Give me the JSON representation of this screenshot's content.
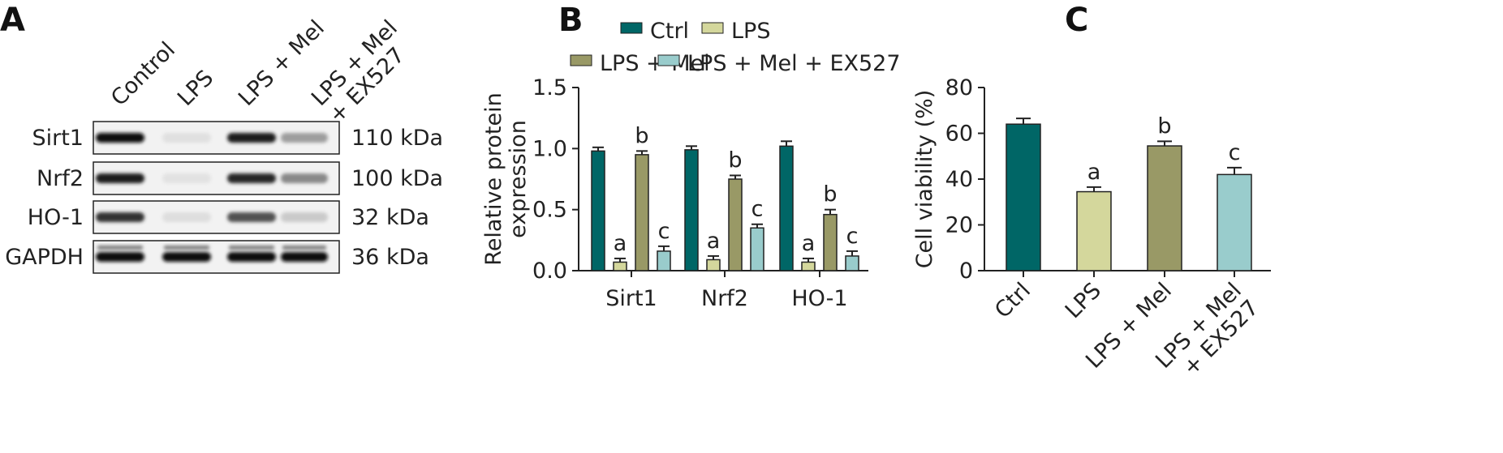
{
  "panels": {
    "a": "A",
    "b": "B",
    "c": "C"
  },
  "western_blot": {
    "lanes": [
      "Control",
      "LPS",
      "LPS + Mel",
      "LPS + Mel\n+ EX527"
    ],
    "proteins": [
      {
        "name": "Sirt1",
        "size": "110 kDa",
        "intensity": [
          1.0,
          0.05,
          0.95,
          0.35
        ]
      },
      {
        "name": "Nrf2",
        "size": "100 kDa",
        "intensity": [
          0.95,
          0.04,
          0.9,
          0.45
        ]
      },
      {
        "name": "HO-1",
        "size": "32 kDa",
        "intensity": [
          0.85,
          0.06,
          0.7,
          0.15
        ]
      },
      {
        "name": "GAPDH",
        "size": "36 kDa",
        "intensity": [
          1.0,
          1.0,
          1.0,
          1.0
        ]
      }
    ]
  },
  "colors": {
    "ctrl": "#006666",
    "lps": "#d4d79c",
    "mel": "#999966",
    "ex527": "#99cccc"
  },
  "chart_data": [
    {
      "type": "bar",
      "categories": [
        "Sirt1",
        "Nrf2",
        "HO-1"
      ],
      "series": [
        {
          "name": "Ctrl",
          "values": [
            0.98,
            0.99,
            1.02
          ],
          "errors": [
            0.03,
            0.03,
            0.04
          ],
          "sig": [
            "",
            "",
            ""
          ]
        },
        {
          "name": "LPS",
          "values": [
            0.07,
            0.09,
            0.07
          ],
          "errors": [
            0.03,
            0.03,
            0.03
          ],
          "sig": [
            "a",
            "a",
            "a"
          ]
        },
        {
          "name": "LPS + Mel",
          "values": [
            0.95,
            0.75,
            0.46
          ],
          "errors": [
            0.03,
            0.03,
            0.04
          ],
          "sig": [
            "b",
            "b",
            "b"
          ]
        },
        {
          "name": "LPS + Mel + EX527",
          "values": [
            0.16,
            0.35,
            0.12
          ],
          "errors": [
            0.04,
            0.03,
            0.04
          ],
          "sig": [
            "c",
            "c",
            "c"
          ]
        }
      ],
      "ylabel": "Relative protein\nexpression",
      "ylim": [
        0,
        1.5
      ],
      "yticks": [
        "0.0",
        "0.5",
        "1.0",
        "1.5"
      ],
      "legend": "top"
    },
    {
      "type": "bar",
      "categories": [
        "Ctrl",
        "LPS",
        "LPS + Mel",
        "LPS + Mel\n+ EX527"
      ],
      "values": [
        64,
        34.5,
        54.5,
        42
      ],
      "errors": [
        2.5,
        2,
        2,
        3
      ],
      "sig": [
        "",
        "a",
        "b",
        "c"
      ],
      "ylabel": "Cell viability (%)",
      "ylim": [
        0,
        80
      ],
      "yticks": [
        "0",
        "20",
        "40",
        "60",
        "80"
      ]
    }
  ]
}
